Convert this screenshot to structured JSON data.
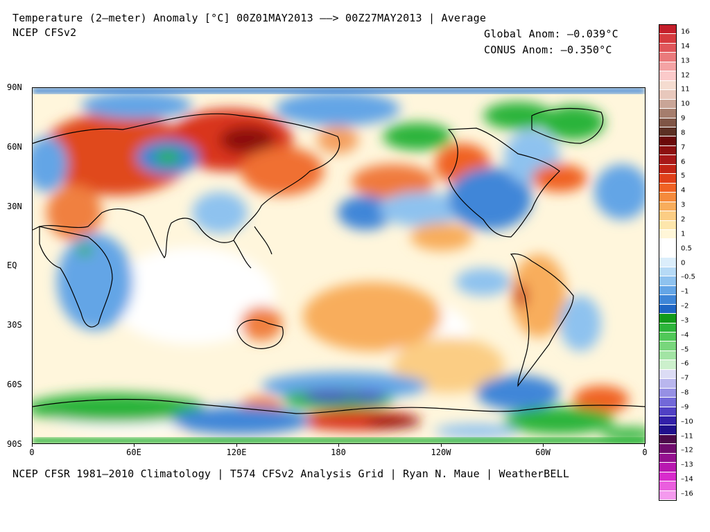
{
  "header": {
    "title": "Temperature (2–meter) Anomaly  [°C] 00Z01MAY2013 ––> 00Z27MAY2013 | Average",
    "subtitle": "NCEP CFSv2",
    "global_anom": "Global Anom: –0.039°C",
    "conus_anom": "CONUS Anom: –0.350°C"
  },
  "footer": "NCEP CFSR 1981–2010 Climatology | T574 CFSv2 Analysis Grid | Ryan N. Maue | WeatherBELL",
  "axes": {
    "lat_labels": [
      "90N",
      "60N",
      "30N",
      "EQ",
      "30S",
      "60S",
      "90S"
    ],
    "lon_labels": [
      "0",
      "60E",
      "120E",
      "180",
      "120W",
      "60W",
      "0"
    ]
  },
  "colorbar": {
    "colors": [
      "#c41e2a",
      "#d63b3f",
      "#e0565a",
      "#ea7a7c",
      "#f4a3a4",
      "#fbcaca",
      "#f5dcd0",
      "#e8c8bc",
      "#c9a597",
      "#a57d6d",
      "#7f5546",
      "#5c3024",
      "#6b0a0a",
      "#8c1010",
      "#a71818",
      "#c22415",
      "#e0401a",
      "#f06224",
      "#f58a3c",
      "#f8ad5c",
      "#fbcd84",
      "#fde6ac",
      "#fff6d8",
      "#ffffff",
      "#ffffff",
      "#dbeefb",
      "#b6daf6",
      "#8ec2ef",
      "#64a5e6",
      "#3f86d8",
      "#1f66c4",
      "#129a1a",
      "#2cb43a",
      "#50c858",
      "#78d67c",
      "#a2e4a4",
      "#ccf0cc",
      "#dcdcf5",
      "#b9b6ee",
      "#9690e4",
      "#7268d8",
      "#5040c4",
      "#3220a8",
      "#20108c",
      "#4c0a4a",
      "#700c6e",
      "#94108f",
      "#b818b0",
      "#d82ccc",
      "#ea5ede",
      "#f49aee"
    ],
    "labels": [
      "16",
      "14",
      "13",
      "12",
      "11",
      "10",
      "9",
      "8",
      "7",
      "6",
      "5",
      "4",
      "3",
      "2",
      "1",
      "0.5",
      "0",
      "–0.5",
      "–1",
      "–2",
      "–3",
      "–4",
      "–5",
      "–6",
      "–7",
      "–8",
      "–9",
      "–10",
      "–11",
      "–12",
      "–13",
      "–14",
      "–16"
    ]
  }
}
